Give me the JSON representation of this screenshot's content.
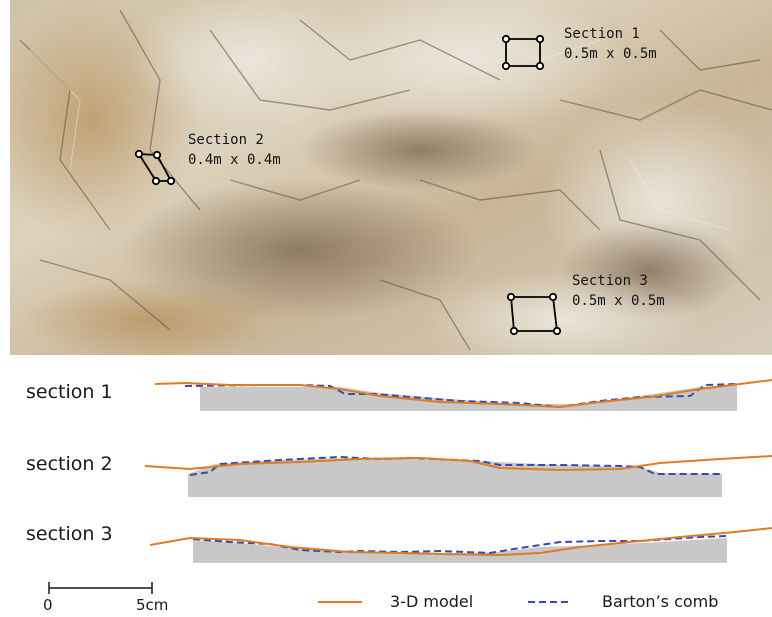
{
  "photo": {
    "sections": [
      {
        "label": "Section 1",
        "size": "0.5m x 0.5m"
      },
      {
        "label": "Section 2",
        "size": "0.4m x 0.4m"
      },
      {
        "label": "Section 3",
        "size": "0.5m x 0.5m"
      }
    ]
  },
  "profiles": [
    {
      "label": "section 1"
    },
    {
      "label": "section 2"
    },
    {
      "label": "section 3"
    }
  ],
  "scale_bar": {
    "start_label": "0",
    "end_label": "5cm"
  },
  "legend": [
    {
      "label": "3-D model",
      "color": "#e07b25",
      "style": "solid"
    },
    {
      "label": "Barton’s comb",
      "color": "#3b4aa8",
      "style": "dashed"
    }
  ],
  "colors": {
    "profile_fill": "#c8c8c8",
    "marker": "#000000"
  }
}
